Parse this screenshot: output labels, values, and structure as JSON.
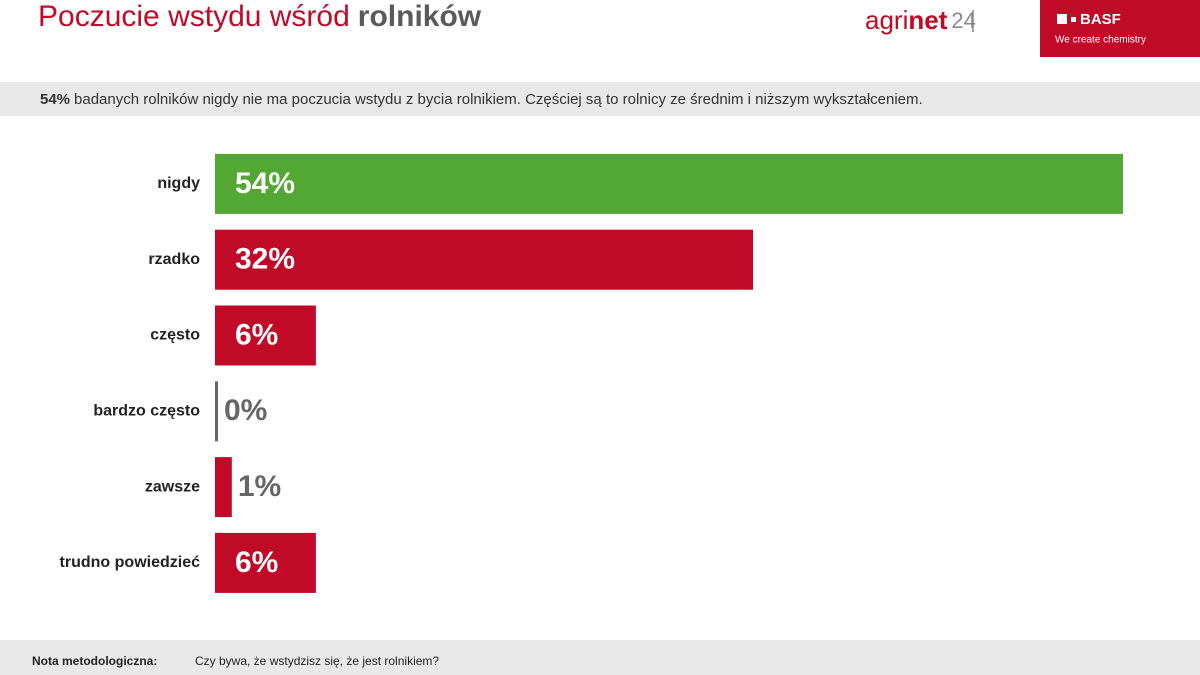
{
  "header": {
    "title_regular": "Poczucie wstydu wśród",
    "title_bold": "rolników",
    "logo_agri": "agri",
    "logo_net": "net",
    "logo_num": "24",
    "brand": "BASF",
    "brand_tagline": "We create chemistry"
  },
  "chart_data": {
    "type": "bar",
    "orientation": "horizontal",
    "subtitle_lead": "54%",
    "subtitle": "badanych rolników nigdy nie ma poczucia wstydu z bycia rolnikiem. Częściej są to rolnicy ze średnim i niższym wykształceniem.",
    "categories": [
      "nigdy",
      "rzadko",
      "często",
      "bardzo często",
      "zawsze",
      "trudno powiedzieć"
    ],
    "values": [
      54,
      32,
      6,
      0,
      1,
      6
    ],
    "value_labels": [
      "54%",
      "32%",
      "6%",
      "0%",
      "1%",
      "6%"
    ],
    "colors": [
      "#52a833",
      "#c10a27",
      "#c10a27",
      "#666666",
      "#c10a27",
      "#c10a27"
    ]
  },
  "footer": {
    "label": "Nota metodologiczna:",
    "question": "Czy bywa, że wstydzisz się, że jest rolnikiem?"
  }
}
